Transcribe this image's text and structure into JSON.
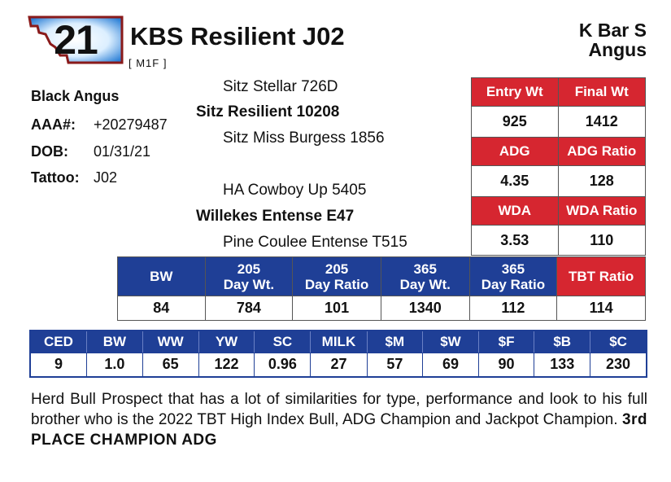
{
  "lot": {
    "number": "21"
  },
  "bull": {
    "name": "KBS Resilient J02",
    "code": "[ M1F ]"
  },
  "ranch": {
    "line1": "K Bar S",
    "line2": "Angus"
  },
  "info": {
    "breed": "Black Angus",
    "aaa_label": "AAA#:",
    "aaa_value": "+20279487",
    "dob_label": "DOB:",
    "dob_value": "01/31/21",
    "tattoo_label": "Tattoo:",
    "tattoo_value": "J02"
  },
  "pedigree": {
    "sire_sire": "Sitz Stellar 726D",
    "sire": "Sitz Resilient 10208",
    "sire_dam": "Sitz Miss Burgess 1856",
    "dam_sire": "HA Cowboy Up 5405",
    "dam": "Willekes Entense E47",
    "dam_dam": "Pine Coulee Entense T515"
  },
  "performance": {
    "entry_wt_label": "Entry Wt",
    "final_wt_label": "Final Wt",
    "entry_wt": "925",
    "final_wt": "1412",
    "adg_label": "ADG",
    "adg_ratio_label": "ADG Ratio",
    "adg": "4.35",
    "adg_ratio": "128",
    "wda_label": "WDA",
    "wda_ratio_label": "WDA Ratio",
    "wda": "3.53",
    "wda_ratio": "110"
  },
  "ratios": {
    "headers": [
      {
        "l1": "BW",
        "l2": ""
      },
      {
        "l1": "205",
        "l2": "Day Wt."
      },
      {
        "l1": "205",
        "l2": "Day Ratio"
      },
      {
        "l1": "365",
        "l2": "Day Wt."
      },
      {
        "l1": "365",
        "l2": "Day Ratio"
      }
    ],
    "tbt_label": "TBT Ratio",
    "values": [
      "84",
      "784",
      "101",
      "1340",
      "112",
      "114"
    ]
  },
  "epd": {
    "headers": [
      "CED",
      "BW",
      "WW",
      "YW",
      "SC",
      "MILK",
      "$M",
      "$W",
      "$F",
      "$B",
      "$C"
    ],
    "values": [
      "9",
      "1.0",
      "65",
      "122",
      "0.96",
      "27",
      "57",
      "69",
      "90",
      "133",
      "230"
    ]
  },
  "comment": {
    "text": "Herd Bull Prospect that has a lot of similarities for type, performance and look to his full brother who is the 2022 TBT High Index Bull, ADG Champion and Jackpot Champion.",
    "highlight": "3rd PLACE CHAMPION ADG"
  },
  "colors": {
    "red": "#d62630",
    "blue": "#1f3f96",
    "state_outline": "#8a1a1a",
    "state_fill": "#2b7fd6"
  },
  "icons": {
    "badge": "montana-state-icon"
  }
}
